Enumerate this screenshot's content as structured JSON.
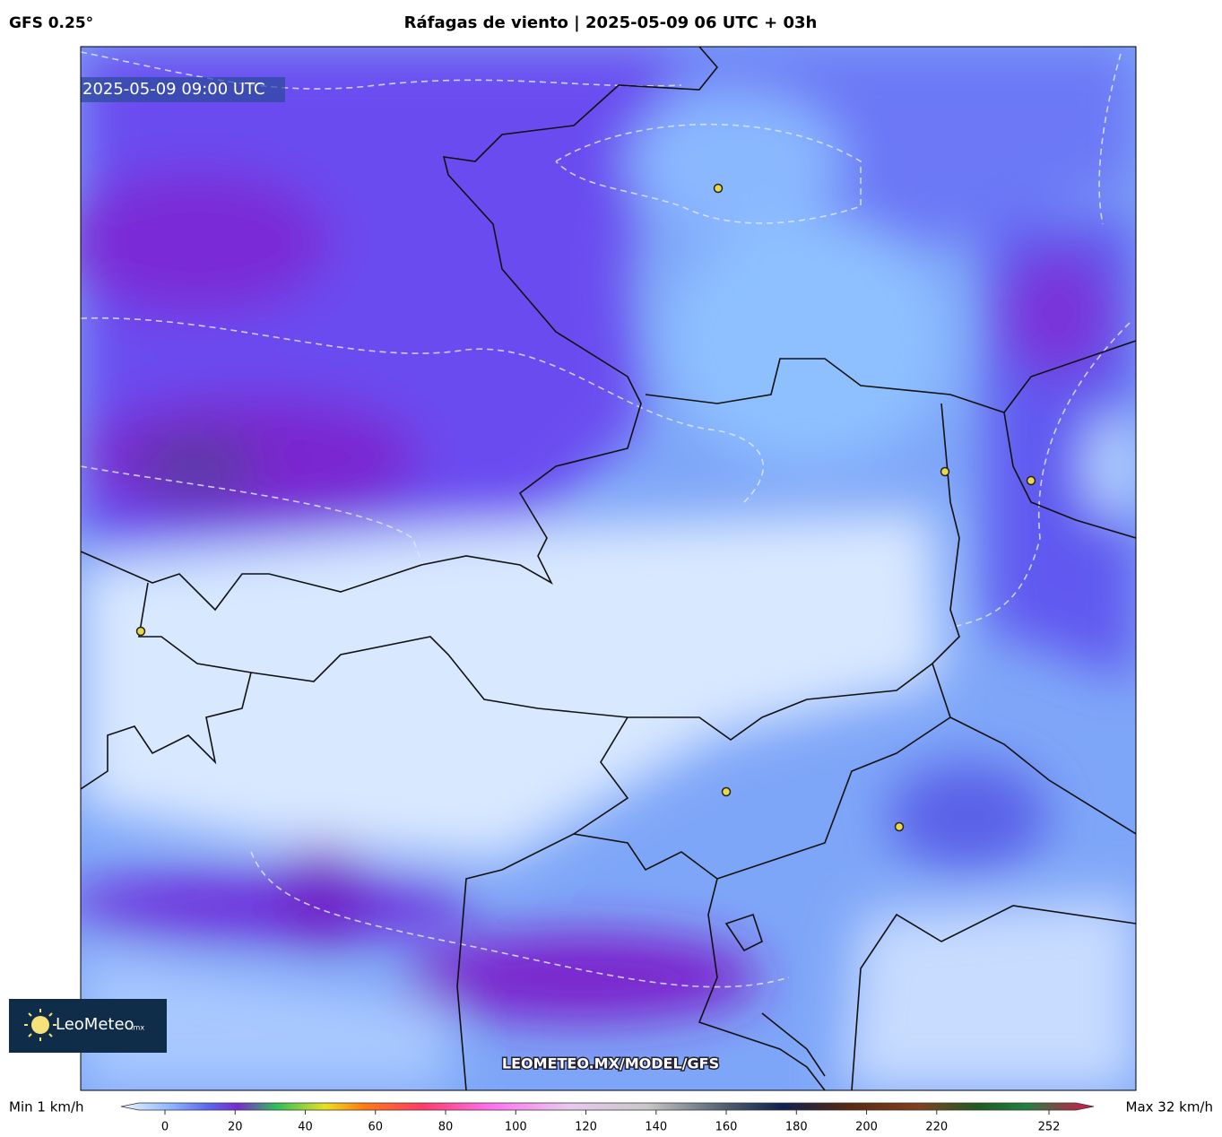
{
  "header": {
    "model": "GFS 0.25°",
    "title": "Ráfagas de viento | 2025-05-09 06 UTC + 03h"
  },
  "map": {
    "timestamp": "2025-05-09 09:00 UTC",
    "watermark": "LEOMETEO.MX/MODEL/GFS"
  },
  "logo": {
    "name": "LeoMeteo",
    "suffix": ".mx"
  },
  "colorbar": {
    "min_label": "Min 1 km/h",
    "max_label": "Max 32 km/h",
    "ticks": [
      0,
      20,
      40,
      60,
      80,
      100,
      120,
      140,
      160,
      180,
      200,
      220,
      252
    ]
  }
}
